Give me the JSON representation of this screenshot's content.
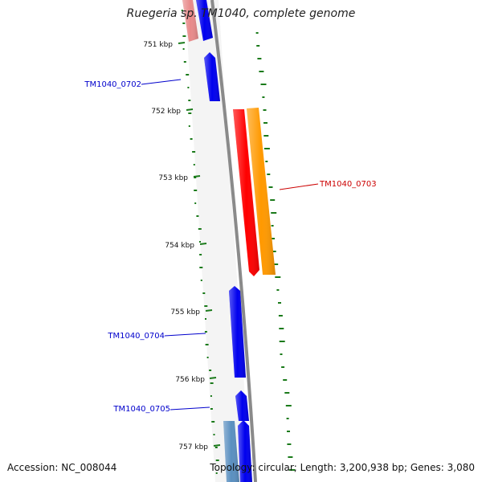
{
  "title": "Ruegeria sp. TM1040, complete genome",
  "footer": {
    "accession": "Accession: NC_008044",
    "summary": "Topology: circular; Length: 3,200,938 bp; Genes: 3,080"
  },
  "ticks": [
    "751 kbp",
    "752 kbp",
    "753 kbp",
    "754 kbp",
    "755 kbp",
    "756 kbp",
    "757 kbp"
  ],
  "genes": [
    {
      "id": "top-pink",
      "label": "",
      "color": "#e88a8a",
      "strand": "reverse"
    },
    {
      "id": "top-blue",
      "label": "",
      "color": "#0000ee",
      "strand": "reverse"
    },
    {
      "id": "TM1040_0702",
      "label": "TM1040_0702",
      "color": "#0000ee",
      "strand": "forward"
    },
    {
      "id": "TM1040_0703",
      "label": "TM1040_0703",
      "color": "#ff0000",
      "strand": "reverse"
    },
    {
      "id": "TM1040_0703-cds",
      "label": "",
      "color": "#ff9900",
      "strand": "reverse"
    },
    {
      "id": "TM1040_0704",
      "label": "TM1040_0704",
      "color": "#0000ee",
      "strand": "forward"
    },
    {
      "id": "TM1040_0705",
      "label": "TM1040_0705",
      "color": "#0000ee",
      "strand": "forward"
    },
    {
      "id": "bottom-steelblue",
      "label": "",
      "color": "#5a8fc0",
      "strand": "forward"
    },
    {
      "id": "bottom-blue",
      "label": "",
      "color": "#0000ee",
      "strand": "forward"
    }
  ],
  "colors": {
    "backbone": "#8a8a8a",
    "gc_marks": "#1a7a1a",
    "label_blue": "#0000cc",
    "label_red": "#cc0000"
  }
}
